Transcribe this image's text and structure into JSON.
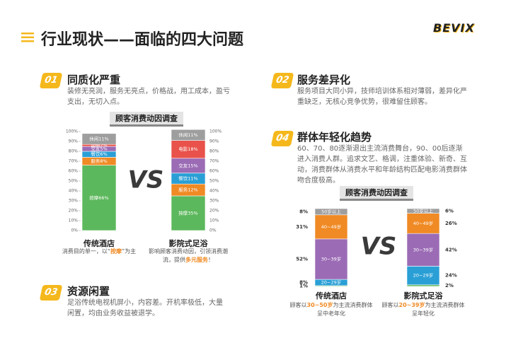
{
  "header": {
    "title": "行业现状——面临的四大问题",
    "logo": "BEVIX"
  },
  "sections": [
    {
      "number": "01",
      "title": "同质化严重",
      "text": "装修无亮润，服务无亮点，价格战，用工成本，盈亏支出，无切入点。"
    },
    {
      "number": "02",
      "title": "服务差异化",
      "text": "服务项目大同小异，技师培训体系相对薄弱，差异化严重缺乏，无核心竞争优势，很难留住顾客。"
    },
    {
      "number": "03",
      "title": "资源闲置",
      "text": "足浴传统电视机屏小，内容差。开机率极低，大量闲置，均由业务收益被退学。"
    },
    {
      "number": "04",
      "title": "群体年轻化趋势",
      "text": "60、70、80逐渐退出主流消费舞台，90、00后逐渐进入消费人群。追求文艺、格调，注重体验、新奇、互动，消费群体从消费水平和年龄结构匹配电影消费群体吻合度极高。"
    }
  ],
  "charts": [
    {
      "title": "顾客消费动因调查",
      "vs": "VS",
      "yticks": [
        {
          "value": 0,
          "label": "0%"
        },
        {
          "value": 10,
          "label": "10%"
        },
        {
          "value": 20,
          "label": "20%"
        },
        {
          "value": 30,
          "label": "30%"
        },
        {
          "value": 40,
          "label": "40%"
        },
        {
          "value": 50,
          "label": "50%"
        },
        {
          "value": 60,
          "label": "60%"
        },
        {
          "value": 70,
          "label": "70%"
        },
        {
          "value": 80,
          "label": "80%"
        },
        {
          "value": 90,
          "label": "90%"
        },
        {
          "value": 100,
          "label": "100%"
        }
      ],
      "bars": [
        {
          "name": "传统酒店",
          "caption": [
            "消费目的单一，以“",
            "按摩",
            "”为主"
          ],
          "segments": [
            {
              "label": "按摩66%",
              "value": 66,
              "color": "#5cb85c"
            },
            {
              "label": "服务8%",
              "value": 8,
              "color": "#f08a24"
            },
            {
              "label": "餐饮6%",
              "value": 6,
              "color": "#2a9fd6"
            },
            {
              "label": "交友5%",
              "value": 5,
              "color": "#9b6bb5"
            },
            {
              "label": "团购2%",
              "value": 2,
              "color": "#e8524a"
            },
            {
              "label": "休闲11%",
              "value": 11,
              "color": "#9e9e9e"
            }
          ]
        },
        {
          "name": "影院式足浴",
          "caption": [
            "影响顾客消费动因，引领消费潮流，提供",
            "多元服务",
            "！"
          ],
          "segments": [
            {
              "label": "按摩35%",
              "value": 35,
              "color": "#5cb85c"
            },
            {
              "label": "服务12%",
              "value": 12,
              "color": "#f08a24"
            },
            {
              "label": "餐饮11%",
              "value": 11,
              "color": "#2a9fd6"
            },
            {
              "label": "交友15%",
              "value": 15,
              "color": "#9b6bb5"
            },
            {
              "label": "电影18%",
              "value": 18,
              "color": "#e8524a"
            },
            {
              "label": "休闲11%",
              "value": 11,
              "color": "#9e9e9e"
            }
          ]
        }
      ]
    },
    {
      "title": "顾客消费动因调查",
      "vs": "VS",
      "bars": [
        {
          "name": "传统酒店",
          "caption": [
            "顾客以",
            "30~50岁",
            "为主流消费群体呈中老年化"
          ],
          "segments": [
            {
              "value": 1,
              "label": "1%",
              "color": "#5cb85c"
            },
            {
              "name": "20~29岁",
              "value": 8,
              "label": "8%",
              "color": "#2a9fd6"
            },
            {
              "name": "30~39岁",
              "value": 52,
              "label": "52%",
              "color": "#9b6bb5"
            },
            {
              "name": "40~49岁",
              "value": 31,
              "label": "31%",
              "color": "#f08a24"
            },
            {
              "name": "50岁以上",
              "value": 8,
              "label": "8%",
              "color": "#9e9e9e"
            }
          ]
        },
        {
          "name": "影院式足浴",
          "caption": [
            "顾客以",
            "20~39岁",
            "为主流消费群体呈年轻化"
          ],
          "segments": [
            {
              "value": 2,
              "label": "2%",
              "color": "#5cb85c"
            },
            {
              "name": "20~29岁",
              "value": 24,
              "label": "24%",
              "color": "#2a9fd6"
            },
            {
              "name": "30~39岁",
              "value": 42,
              "label": "42%",
              "color": "#9b6bb5"
            },
            {
              "name": "40~49岁",
              "value": 26,
              "label": "26%",
              "color": "#f08a24"
            },
            {
              "name": "50岁以上",
              "value": 6,
              "label": "6%",
              "color": "#9e9e9e"
            }
          ]
        }
      ]
    }
  ]
}
